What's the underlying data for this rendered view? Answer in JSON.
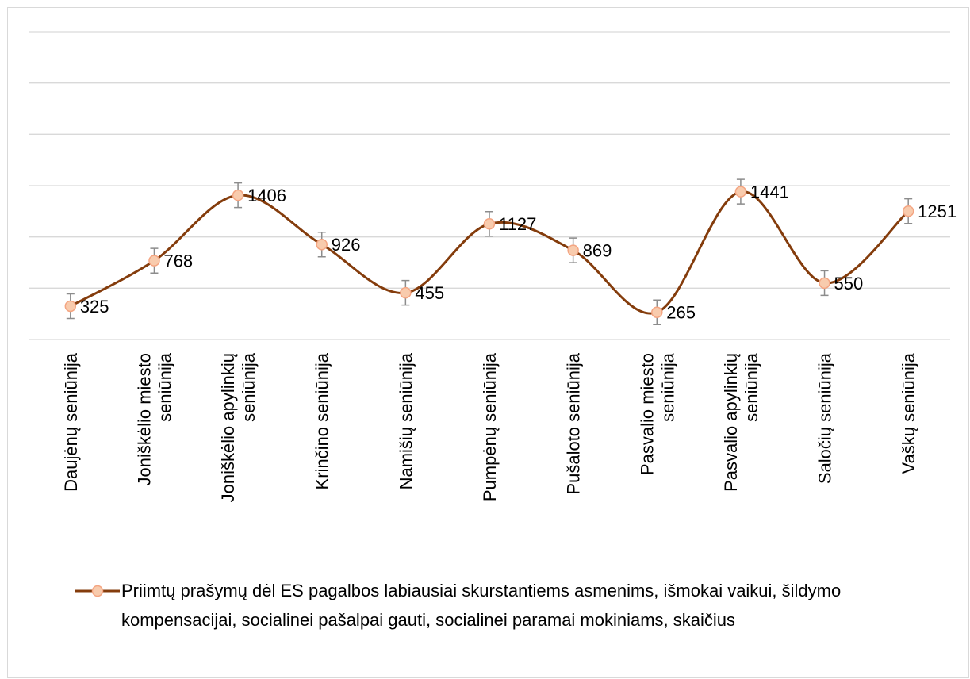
{
  "chart_data": {
    "type": "line",
    "categories": [
      "Daujėnų seniūnija",
      "Joniškėlio miesto seniūnija",
      "Joniškėlio apylinkių seniūnija",
      "Krinčino seniūnija",
      "Namišių seniūnija",
      "Pumpėnų seniūnija",
      "Pušaloto seniūnija",
      "Pasvalio miesto seniūnija",
      "Pasvalio apylinkių seniūnija",
      "Saločių seniūnija",
      "Vaškų seniūnija"
    ],
    "series": [
      {
        "name": "Priimtų prašymų dėl ES pagalbos labiausiai skurstantiems asmenims, išmokai vaikui, šildymo kompensacijai, socialinei pašalpai gauti, socialinei paramai mokiniams, skaičius",
        "color": "#843c0c",
        "marker_fill": "#f8cbad",
        "marker_edge": "#f4a582",
        "values": [
          325,
          768,
          1406,
          926,
          455,
          1127,
          869,
          265,
          1441,
          550,
          1251
        ],
        "error": 120
      }
    ],
    "ylim": [
      0,
      3000
    ],
    "yticks": [
      0,
      500,
      1000,
      1500,
      2000,
      2500,
      3000
    ],
    "grid": true,
    "smooth": true,
    "legend": "bottom"
  }
}
